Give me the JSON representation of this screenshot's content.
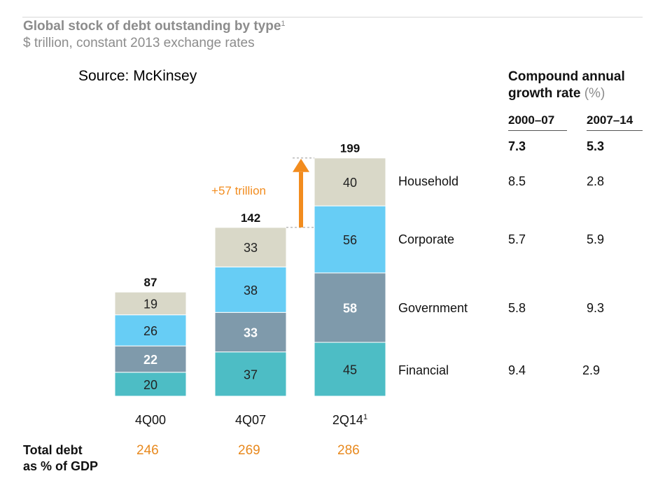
{
  "header": {
    "title": "Global stock of debt outstanding by type",
    "title_footnote": "1",
    "subtitle": "$ trillion, constant 2013 exchange rates",
    "source": "Source: McKinsey"
  },
  "chart_data": {
    "type": "bar",
    "stacked": true,
    "categories": [
      "4Q00",
      "4Q07",
      "2Q14"
    ],
    "category_footnotes": [
      "",
      "",
      "1"
    ],
    "series": [
      {
        "name": "Financial",
        "values": [
          20,
          37,
          45
        ],
        "color": "#4dbdc5"
      },
      {
        "name": "Government",
        "values": [
          22,
          33,
          58
        ],
        "color": "#7f9aab"
      },
      {
        "name": "Corporate",
        "values": [
          26,
          38,
          56
        ],
        "color": "#67cdf5"
      },
      {
        "name": "Household",
        "values": [
          19,
          33,
          40
        ],
        "color": "#d9d8c8"
      }
    ],
    "totals": [
      87,
      142,
      199
    ],
    "annotation": {
      "text": "+57 trillion",
      "color": "#f28c1e"
    }
  },
  "growth_table": {
    "heading_line1": "Compound annual",
    "heading_line2": "growth rate",
    "heading_unit": "(%)",
    "columns": [
      "2000–07",
      "2007–14"
    ],
    "total_row": [
      "7.3",
      "5.3"
    ],
    "rows": [
      {
        "label": "Household",
        "values": [
          "8.5",
          "2.8"
        ]
      },
      {
        "label": "Corporate",
        "values": [
          "5.7",
          "5.9"
        ]
      },
      {
        "label": "Government",
        "values": [
          "5.8",
          "9.3"
        ]
      },
      {
        "label": "Financial",
        "values": [
          "9.4",
          "2.9"
        ]
      }
    ]
  },
  "footer": {
    "label_line1": "Total debt",
    "label_line2": "as % of GDP",
    "values": [
      "246",
      "269",
      "286"
    ]
  },
  "colors": {
    "accent": "#f28c1e",
    "title_grey": "#8c8c8c"
  }
}
